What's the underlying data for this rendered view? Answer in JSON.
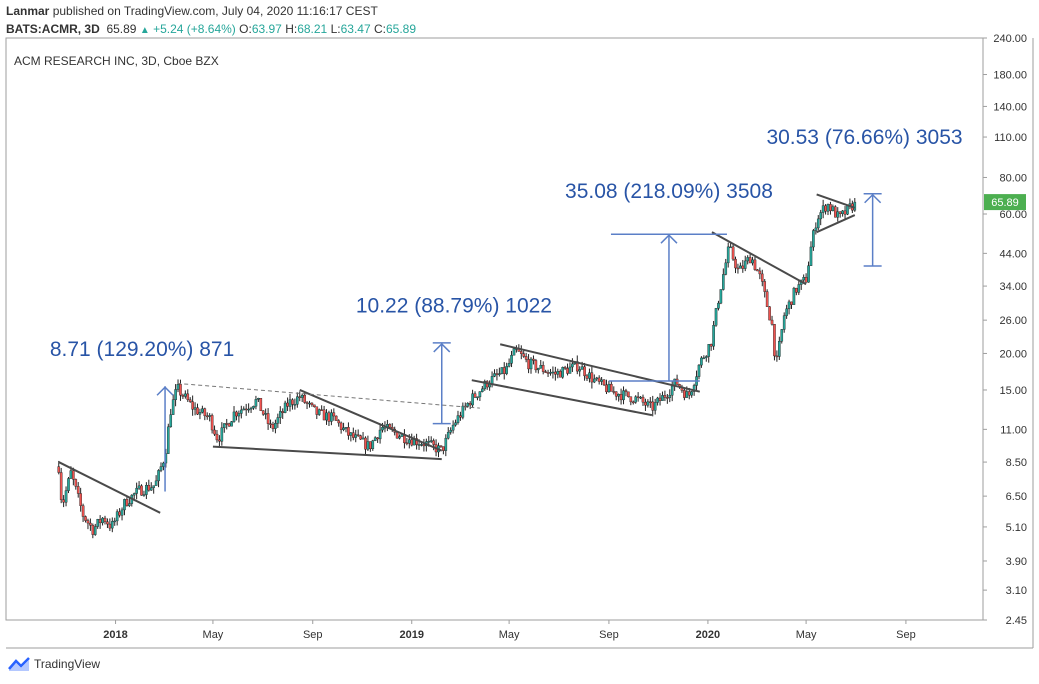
{
  "header": {
    "author": "Lanmar",
    "published_text": "published on TradingView.com, July 04, 2020 11:16:17 CEST",
    "symbol": "BATS:ACMR, 3D",
    "last": "65.89",
    "change": "+5.24 (+8.64%)",
    "o_label": "O:",
    "o": "63.97",
    "h_label": "H:",
    "h": "68.21",
    "l_label": "L:",
    "l": "63.47",
    "c_label": "C:",
    "c": "65.89"
  },
  "brand": {
    "name": "TradingView"
  },
  "colors": {
    "up": "#26a69a",
    "down": "#ef5350",
    "candle": "#222222",
    "trendline": "#4a4a4a",
    "measure": "#5b7fc7",
    "label": "#2854a6",
    "price_tag": "#4caf50"
  },
  "chart_data": {
    "type": "candlestick",
    "title": "ACM RESEARCH INC, 3D, Cboe BZX",
    "y_scale": "log",
    "ylim": [
      2.45,
      240.0
    ],
    "y_ticks": [
      "240.00",
      "180.00",
      "140.00",
      "110.00",
      "80.00",
      "60.00",
      "44.00",
      "34.00",
      "26.00",
      "20.00",
      "15.00",
      "11.00",
      "8.50",
      "6.50",
      "5.10",
      "3.90",
      "3.10",
      "2.45"
    ],
    "x_ticks": [
      "2018",
      "May",
      "Sep",
      "2019",
      "May",
      "Sep",
      "2020",
      "May",
      "Sep"
    ],
    "x_tick_dates": [
      "2018-01-01",
      "2018-05-01",
      "2018-09-01",
      "2019-01-01",
      "2019-05-01",
      "2019-09-01",
      "2020-01-01",
      "2020-05-01",
      "2020-09-01"
    ],
    "xlim": [
      "2017-08-19",
      "2020-12-05"
    ],
    "last_price_label": "65.89",
    "last_price": 65.89,
    "price_path": [
      {
        "date": "2017-10-23",
        "price": 8.2
      },
      {
        "date": "2017-10-27",
        "price": 6.0
      },
      {
        "date": "2017-11-07",
        "price": 7.8
      },
      {
        "date": "2017-11-22",
        "price": 5.6
      },
      {
        "date": "2017-12-04",
        "price": 5.0
      },
      {
        "date": "2017-12-17",
        "price": 5.5
      },
      {
        "date": "2017-12-27",
        "price": 5.1
      },
      {
        "date": "2018-01-13",
        "price": 6.2
      },
      {
        "date": "2018-01-30",
        "price": 6.8
      },
      {
        "date": "2018-02-19",
        "price": 7.1
      },
      {
        "date": "2018-03-03",
        "price": 9.0
      },
      {
        "date": "2018-03-10",
        "price": 12.8
      },
      {
        "date": "2018-03-18",
        "price": 15.2
      },
      {
        "date": "2018-04-07",
        "price": 13.0
      },
      {
        "date": "2018-04-27",
        "price": 12.0
      },
      {
        "date": "2018-05-07",
        "price": 10.2
      },
      {
        "date": "2018-05-27",
        "price": 12.5
      },
      {
        "date": "2018-06-24",
        "price": 13.8
      },
      {
        "date": "2018-07-12",
        "price": 11.0
      },
      {
        "date": "2018-08-02",
        "price": 13.5
      },
      {
        "date": "2018-08-16",
        "price": 14.2
      },
      {
        "date": "2018-09-05",
        "price": 12.5
      },
      {
        "date": "2018-09-26",
        "price": 12.0
      },
      {
        "date": "2018-10-16",
        "price": 10.5
      },
      {
        "date": "2018-11-10",
        "price": 9.6
      },
      {
        "date": "2018-11-25",
        "price": 11.2
      },
      {
        "date": "2018-12-25",
        "price": 10.3
      },
      {
        "date": "2019-01-20",
        "price": 9.8
      },
      {
        "date": "2019-02-07",
        "price": 9.3
      },
      {
        "date": "2019-02-22",
        "price": 11.5
      },
      {
        "date": "2019-03-14",
        "price": 13.8
      },
      {
        "date": "2019-04-05",
        "price": 16.0
      },
      {
        "date": "2019-04-27",
        "price": 17.5
      },
      {
        "date": "2019-05-09",
        "price": 20.5
      },
      {
        "date": "2019-05-25",
        "price": 18.5
      },
      {
        "date": "2019-06-26",
        "price": 17.0
      },
      {
        "date": "2019-07-25",
        "price": 18.2
      },
      {
        "date": "2019-08-16",
        "price": 16.0
      },
      {
        "date": "2019-09-05",
        "price": 14.8
      },
      {
        "date": "2019-10-05",
        "price": 14.0
      },
      {
        "date": "2019-10-24",
        "price": 13.0
      },
      {
        "date": "2019-11-10",
        "price": 14.5
      },
      {
        "date": "2019-11-23",
        "price": 16.0
      },
      {
        "date": "2019-12-08",
        "price": 14.2
      },
      {
        "date": "2019-12-22",
        "price": 18.5
      },
      {
        "date": "2020-01-05",
        "price": 22.0
      },
      {
        "date": "2020-01-16",
        "price": 33.0
      },
      {
        "date": "2020-01-27",
        "price": 46.0
      },
      {
        "date": "2020-02-08",
        "price": 38.0
      },
      {
        "date": "2020-02-23",
        "price": 43.0
      },
      {
        "date": "2020-03-06",
        "price": 36.0
      },
      {
        "date": "2020-03-20",
        "price": 25.0
      },
      {
        "date": "2020-03-25",
        "price": 18.0
      },
      {
        "date": "2020-04-04",
        "price": 27.0
      },
      {
        "date": "2020-04-18",
        "price": 33.0
      },
      {
        "date": "2020-05-01",
        "price": 36.0
      },
      {
        "date": "2020-05-07",
        "price": 46.0
      },
      {
        "date": "2020-05-14",
        "price": 58.0
      },
      {
        "date": "2020-05-27",
        "price": 65.0
      },
      {
        "date": "2020-06-11",
        "price": 58.0
      },
      {
        "date": "2020-06-24",
        "price": 63.0
      },
      {
        "date": "2020-07-02",
        "price": 65.89
      }
    ],
    "trendlines": [
      {
        "from": {
          "date": "2017-10-23",
          "price": 8.5
        },
        "to": {
          "date": "2018-02-25",
          "price": 5.7
        }
      },
      {
        "from": {
          "date": "2018-05-01",
          "price": 9.6
        },
        "to": {
          "date": "2019-02-07",
          "price": 8.7
        }
      },
      {
        "from": {
          "date": "2018-08-16",
          "price": 15.0
        },
        "to": {
          "date": "2019-02-07",
          "price": 9.3
        }
      },
      {
        "from": {
          "date": "2019-04-20",
          "price": 21.5
        },
        "to": {
          "date": "2019-12-22",
          "price": 14.8
        }
      },
      {
        "from": {
          "date": "2019-03-16",
          "price": 16.2
        },
        "to": {
          "date": "2019-10-24",
          "price": 12.3
        }
      },
      {
        "from": {
          "date": "2020-01-06",
          "price": 52.0
        },
        "to": {
          "date": "2020-05-01",
          "price": 34.5
        }
      },
      {
        "from": {
          "date": "2020-05-14",
          "price": 70.0
        },
        "to": {
          "date": "2020-06-30",
          "price": 63.0
        }
      },
      {
        "from": {
          "date": "2020-05-14",
          "price": 52.0
        },
        "to": {
          "date": "2020-06-30",
          "price": 59.5
        }
      }
    ],
    "dashed_lines": [
      {
        "from": {
          "date": "2018-03-18",
          "price": 15.8
        },
        "to": {
          "date": "2019-03-26",
          "price": 13.0
        }
      }
    ],
    "support_lines": [
      {
        "from": {
          "date": "2019-09-01",
          "price": 16.1
        },
        "to": {
          "date": "2019-12-22",
          "price": 16.1
        }
      }
    ],
    "measurements": [
      {
        "label": "8.71 (129.20%) 871",
        "date": "2018-03-03",
        "from": 6.74,
        "to": 15.45,
        "label_anchor": {
          "date": "2017-10-12",
          "price": 19.6
        },
        "label_align": "start"
      },
      {
        "label": "10.22 (88.79%) 1022",
        "date": "2019-02-07",
        "from": 11.51,
        "to": 21.73,
        "label_anchor": {
          "date": "2019-02-22",
          "price": 27.6
        },
        "label_align": "middle"
      },
      {
        "label": "35.08 (218.09%) 3508",
        "date": "2019-11-14",
        "from": 16.09,
        "to": 51.17,
        "label_anchor": {
          "date": "2019-11-14",
          "price": 68.0
        },
        "label_align": "middle"
      },
      {
        "label": "30.53 (76.66%) 3053",
        "date": "2020-07-22",
        "from": 39.83,
        "to": 70.36,
        "label_anchor": {
          "date": "2020-07-12",
          "price": 104.0
        },
        "label_align": "middle"
      }
    ]
  }
}
